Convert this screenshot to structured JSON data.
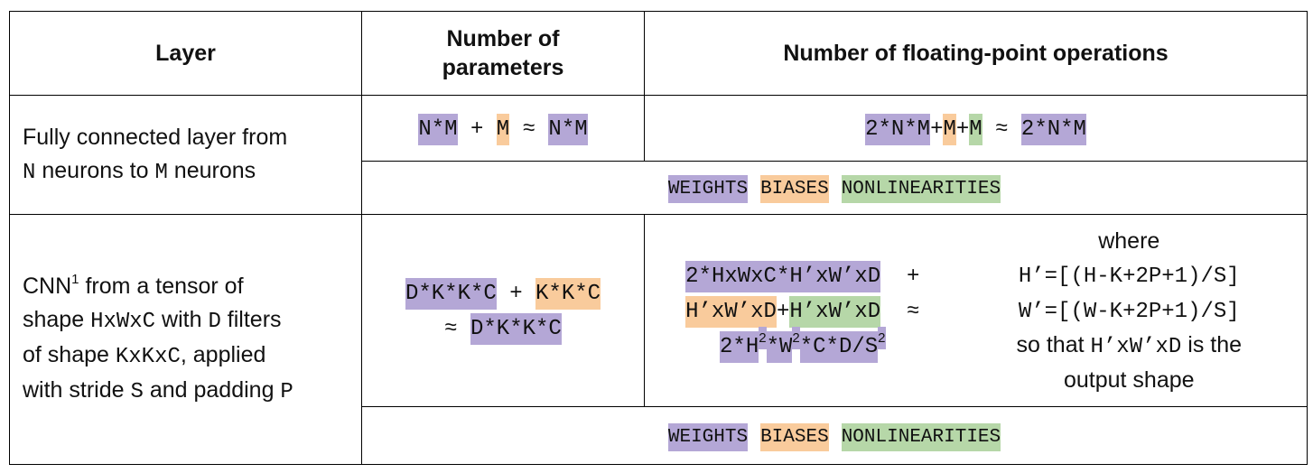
{
  "header": [
    "Layer",
    "Number of parameters",
    "Number of floating-point operations"
  ],
  "rows": [
    {
      "layer": [
        [
          {
            "text": "Fully connected layer from"
          }
        ],
        [
          {
            "text": "N",
            "style": "mono"
          },
          {
            "text": " neurons to "
          },
          {
            "text": "M",
            "style": "mono"
          },
          {
            "text": " neurons"
          }
        ]
      ],
      "params": [
        [
          {
            "text": "N*M",
            "style": "mono w"
          },
          {
            "text": " + ",
            "style": "mono"
          },
          {
            "text": "M",
            "style": "mono b"
          },
          {
            "text": " ≈ ",
            "style": "mono"
          },
          {
            "text": "N*M",
            "style": "mono w"
          }
        ]
      ],
      "flops": [
        [
          {
            "text": "2*N*M",
            "style": "mono w"
          },
          {
            "text": "+",
            "style": "mono"
          },
          {
            "text": "M",
            "style": "mono b"
          },
          {
            "text": "+",
            "style": "mono"
          },
          {
            "text": "M",
            "style": "mono n"
          },
          {
            "text": " ≈ ",
            "style": "mono"
          },
          {
            "text": "2*N*M",
            "style": "mono w"
          }
        ]
      ],
      "legend": [
        {
          "text": "WEIGHTS",
          "style": "mono w"
        },
        {
          "text": "BIASES",
          "style": "mono b"
        },
        {
          "text": "NONLINEARITIES",
          "style": "mono n"
        }
      ]
    },
    {
      "layer": [
        [
          {
            "text": "CNN"
          },
          {
            "text": "1",
            "style": "sup"
          },
          {
            "text": " from a tensor of"
          }
        ],
        [
          {
            "text": "shape "
          },
          {
            "text": "HxWxC",
            "style": "mono"
          },
          {
            "text": " with "
          },
          {
            "text": "D",
            "style": "mono"
          },
          {
            "text": " filters"
          }
        ],
        [
          {
            "text": "of shape "
          },
          {
            "text": "KxKxC",
            "style": "mono"
          },
          {
            "text": ", applied"
          }
        ],
        [
          {
            "text": "with stride "
          },
          {
            "text": "S",
            "style": "mono"
          },
          {
            "text": " and padding "
          },
          {
            "text": "P",
            "style": "mono"
          }
        ]
      ],
      "params": [
        [
          {
            "text": "D*K*K*C",
            "style": "mono w"
          },
          {
            "text": " + ",
            "style": "mono"
          },
          {
            "text": "K*K*C",
            "style": "mono b"
          }
        ],
        [
          {
            "text": "≈ ",
            "style": "mono"
          },
          {
            "text": "D*K*K*C",
            "style": "mono w"
          }
        ]
      ],
      "flops": [
        [
          {
            "text": "2*HxWxC*H’xW’xD",
            "style": "mono w"
          },
          {
            "text": "  +",
            "style": "mono"
          }
        ],
        [
          {
            "text": "H’xW’xD",
            "style": "mono b"
          },
          {
            "text": "+",
            "style": "mono"
          },
          {
            "text": "H’xW’xD",
            "style": "mono n"
          },
          {
            "text": "  ≈",
            "style": "mono"
          }
        ],
        [
          {
            "text": "2*H",
            "style": "mono w"
          },
          {
            "text": "2",
            "style": "sup w"
          },
          {
            "text": "*W",
            "style": "mono w"
          },
          {
            "text": "2",
            "style": "sup w"
          },
          {
            "text": "*C*D/S",
            "style": "mono w"
          },
          {
            "text": "2",
            "style": "sup w"
          }
        ]
      ],
      "where": [
        [
          {
            "text": "where"
          }
        ],
        [
          {
            "text": "H’=[(H-K+2P+1)/S]",
            "style": "mono"
          }
        ],
        [
          {
            "text": "W’=[(W-K+2P+1)/S]",
            "style": "mono"
          }
        ],
        [
          {
            "text": "so that "
          },
          {
            "text": "H’xW’xD",
            "style": "mono"
          },
          {
            "text": " is the"
          }
        ],
        [
          {
            "text": "output shape"
          }
        ]
      ],
      "legend": [
        {
          "text": "WEIGHTS",
          "style": "mono w"
        },
        {
          "text": "BIASES",
          "style": "mono b"
        },
        {
          "text": "NONLINEARITIES",
          "style": "mono n"
        }
      ]
    }
  ]
}
